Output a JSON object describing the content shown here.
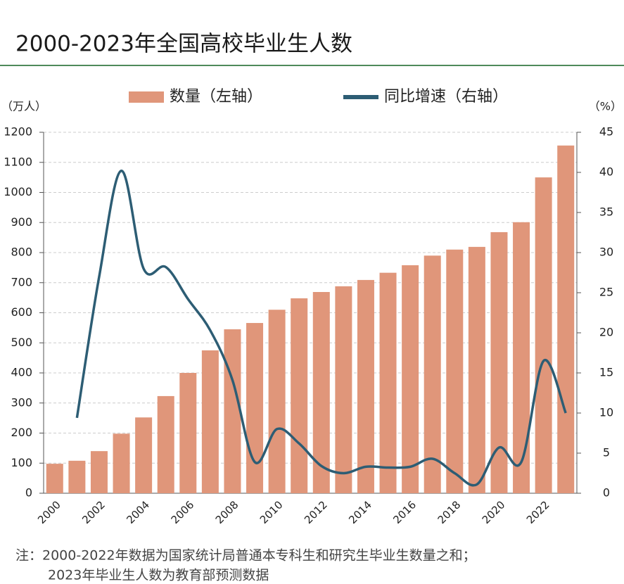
{
  "chart_data": {
    "type": "bar_line",
    "title": "2000-2023年全国高校毕业生人数",
    "y_label": "（万人）",
    "y2_label": "（%）",
    "notes": [
      "注：2000-2022年数据为国家统计局普通本专科生和研究生毕业生数量之和；",
      "2023年毕业生人数为教育部预测数据"
    ],
    "categories": [
      "2000",
      null,
      "2002",
      null,
      "2004",
      null,
      "2006",
      null,
      "2008",
      null,
      "2010",
      null,
      "2012",
      null,
      "2014",
      null,
      "2016",
      null,
      "2018",
      null,
      "2020",
      null,
      "2022",
      null
    ],
    "series": [
      {
        "name": "数量（左轴）",
        "color": "#e0967a",
        "type": "bar",
        "values": [
          98,
          108,
          140,
          198,
          252,
          323,
          400,
          475,
          545,
          566,
          610,
          648,
          669,
          688,
          709,
          733,
          758,
          790,
          810,
          819,
          868,
          901,
          1050,
          1156
        ]
      },
      {
        "name": "同比增速（右轴）",
        "color": "#2d5d74",
        "type": "line",
        "axis": "y2",
        "values": [
          null,
          9.4,
          27,
          40.2,
          28,
          28.2,
          24.2,
          20.3,
          14.1,
          3.9,
          8.0,
          6.2,
          3.4,
          2.5,
          3.3,
          3.2,
          3.3,
          4.3,
          2.5,
          1.1,
          5.7,
          3.9,
          16.5,
          10.0
        ]
      }
    ],
    "ylim": [
      0,
      1200
    ],
    "yticks": [
      0,
      100,
      200,
      300,
      400,
      500,
      600,
      700,
      800,
      900,
      1000,
      1100,
      1200
    ],
    "y2lim": [
      0,
      45
    ],
    "y2ticks": [
      0,
      5,
      10,
      15,
      20,
      25,
      30,
      35,
      40,
      45
    ],
    "grid": true
  }
}
